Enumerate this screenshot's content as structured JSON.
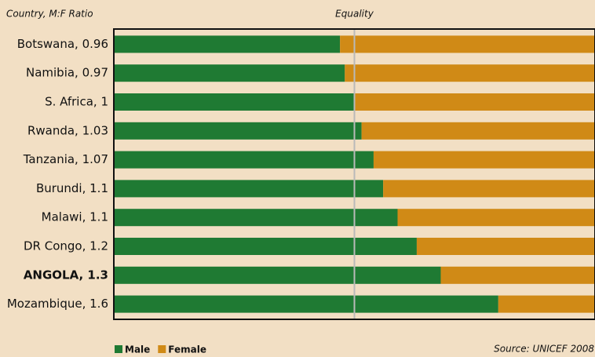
{
  "chart_data": {
    "type": "stacked_bar_horizontal",
    "header": "Country,  M:F Ratio",
    "source": "Source: UNICEF 2008",
    "categories": [
      "Botswana, 0.96",
      "Namibia, 0.97",
      "S. Africa, 1",
      "Rwanda, 1.03",
      "Tanzania, 1.07",
      "Burundi, 1.1",
      "Malawi, 1.1",
      "DR Congo, 1.2",
      "ANGOLA, 1.3",
      "Mozambique, 1.6"
    ],
    "series": [
      {
        "name": "Male",
        "color": "#1f7a33",
        "values": [
          47,
          48,
          50,
          51.5,
          54,
          56,
          59,
          63,
          68,
          80
        ]
      },
      {
        "name": "Female",
        "color": "#d08a16",
        "values": [
          53,
          52,
          50,
          48.5,
          46,
          44,
          41,
          37,
          32,
          20
        ]
      }
    ],
    "xlim": [
      0,
      100
    ],
    "reference_line": {
      "value": 50,
      "label": "Equality",
      "color": "#b9b9b9"
    },
    "highlight": {
      "category": 8,
      "color": "#b5522a"
    }
  }
}
